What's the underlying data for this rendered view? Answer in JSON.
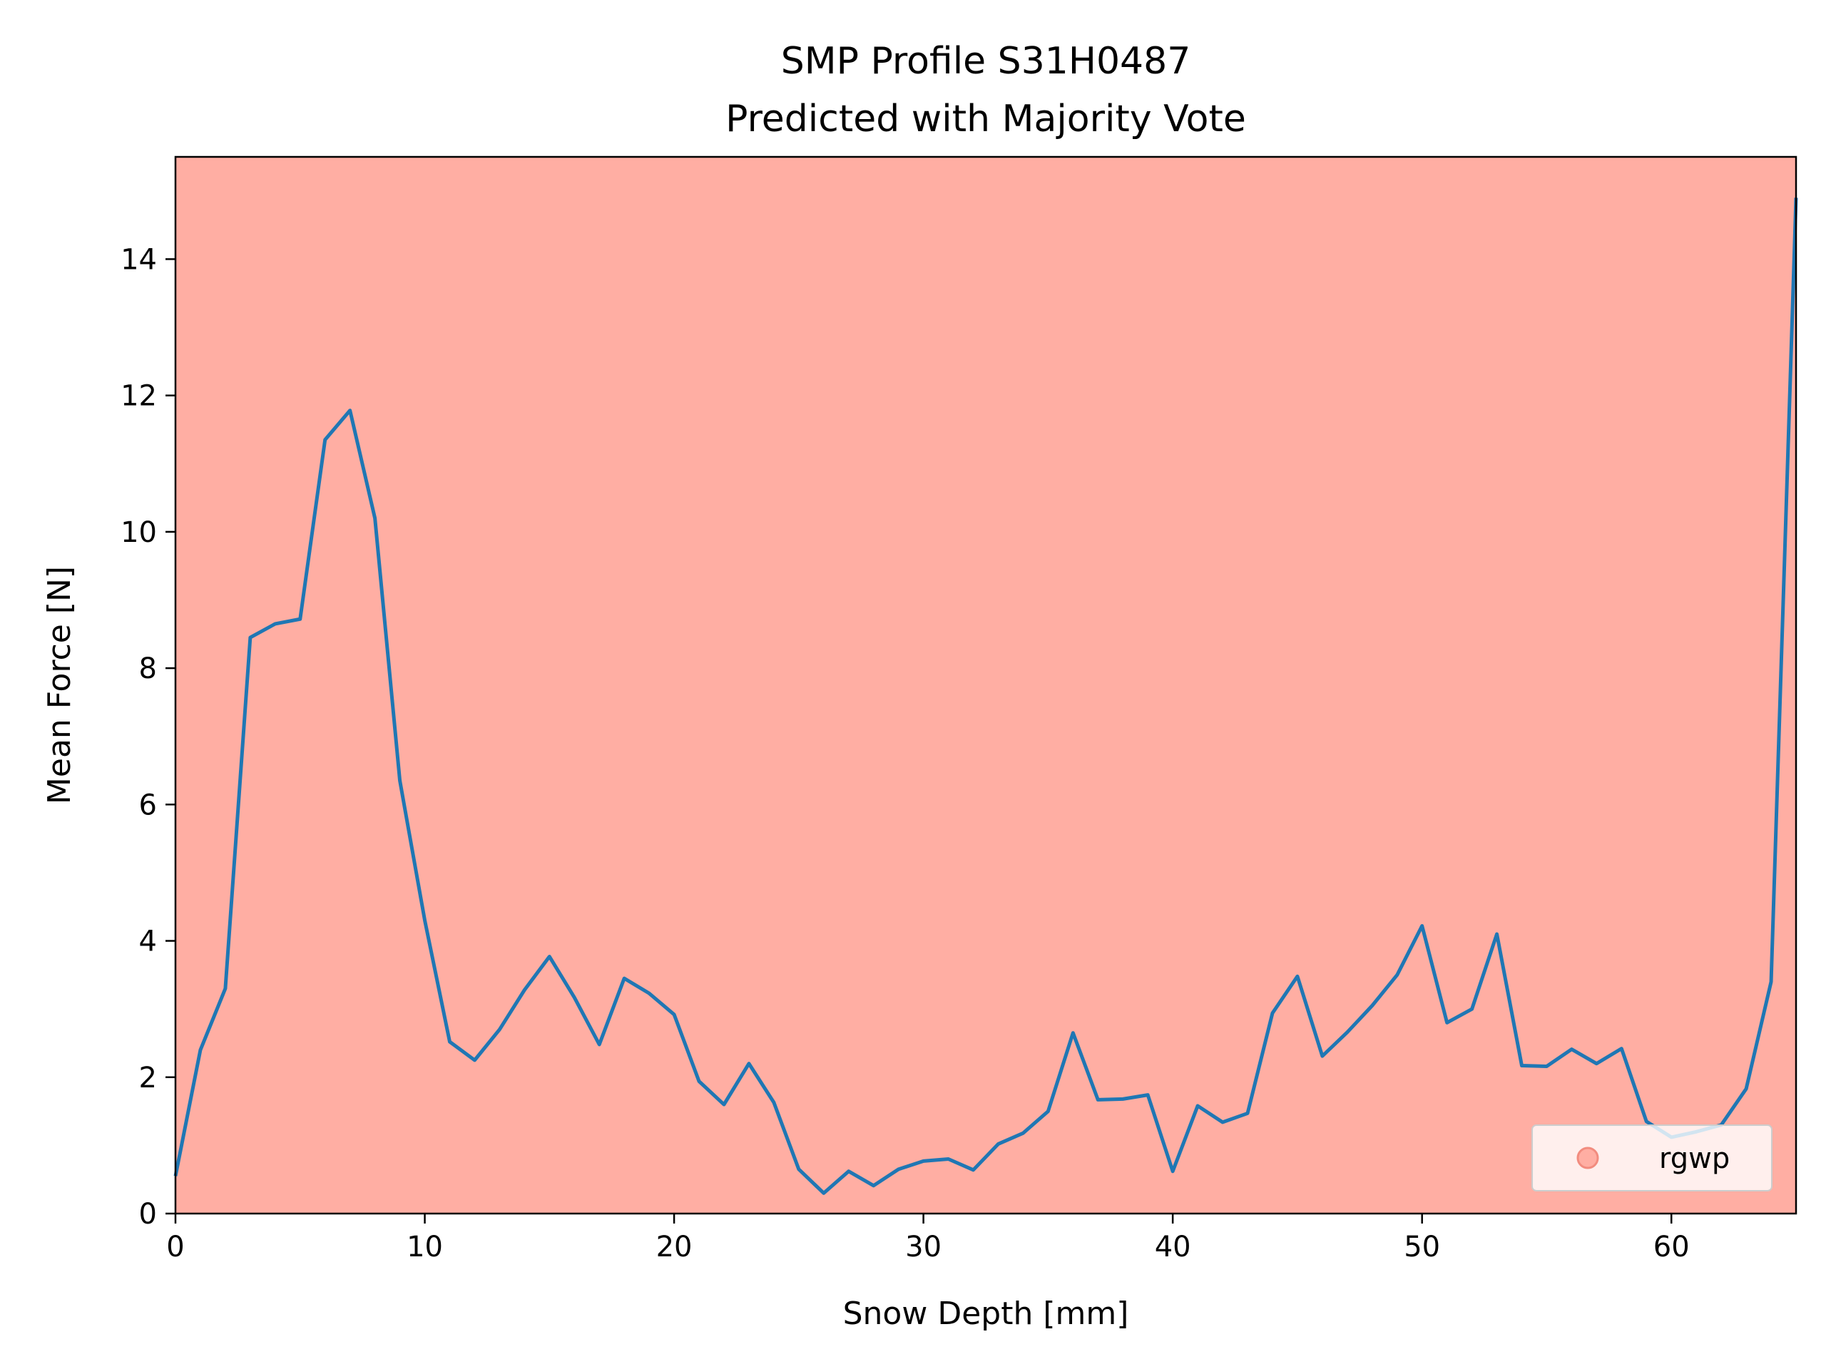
{
  "chart_data": {
    "type": "line",
    "title": "SMP Profile S31H0487",
    "subtitle": "Predicted with Majority Vote",
    "xlabel": "Snow Depth [mm]",
    "ylabel": "Mean Force [N]",
    "xlim": [
      0,
      65
    ],
    "ylim": [
      0,
      15.5
    ],
    "xticks": [
      "0",
      "10",
      "20",
      "30",
      "40",
      "50",
      "60"
    ],
    "yticks": [
      "0",
      "2",
      "4",
      "6",
      "8",
      "10",
      "12",
      "14"
    ],
    "background_color": "#ffaea3",
    "line_color": "#1f77b4",
    "grid": false,
    "legend": {
      "placement": "lower-right",
      "entries": [
        {
          "label": "rgwp",
          "color": "#ffaea3"
        }
      ]
    },
    "series": [
      {
        "x": [
          0,
          1,
          2,
          3,
          4,
          5,
          6,
          7,
          8,
          9,
          10,
          11,
          12,
          13,
          14,
          15,
          16,
          17,
          18,
          19,
          20,
          21,
          22,
          23,
          24,
          25,
          26,
          27,
          28,
          29,
          30,
          31,
          32,
          33,
          34,
          35,
          36,
          37,
          38,
          39,
          40,
          41,
          42,
          43,
          44,
          45,
          46,
          47,
          48,
          49,
          50,
          51,
          52,
          53,
          54,
          55,
          56,
          57,
          58,
          59,
          60,
          61,
          62,
          63,
          64,
          65
        ],
        "y": [
          0.55,
          2.4,
          3.3,
          8.45,
          8.65,
          8.72,
          11.35,
          11.78,
          10.2,
          6.35,
          4.3,
          2.52,
          2.25,
          2.7,
          3.28,
          3.77,
          3.17,
          2.48,
          3.45,
          3.23,
          2.92,
          1.94,
          1.6,
          2.2,
          1.63,
          0.65,
          0.3,
          0.62,
          0.41,
          0.65,
          0.77,
          0.8,
          0.64,
          1.02,
          1.18,
          1.5,
          2.65,
          1.67,
          1.68,
          1.74,
          0.62,
          1.58,
          1.34,
          1.47,
          2.94,
          3.48,
          2.31,
          2.66,
          3.05,
          3.5,
          4.22,
          2.8,
          3.0,
          4.1,
          2.17,
          2.16,
          2.41,
          2.2,
          2.42,
          1.35,
          1.12,
          1.2,
          1.3,
          1.83,
          3.4,
          14.9
        ]
      }
    ]
  }
}
